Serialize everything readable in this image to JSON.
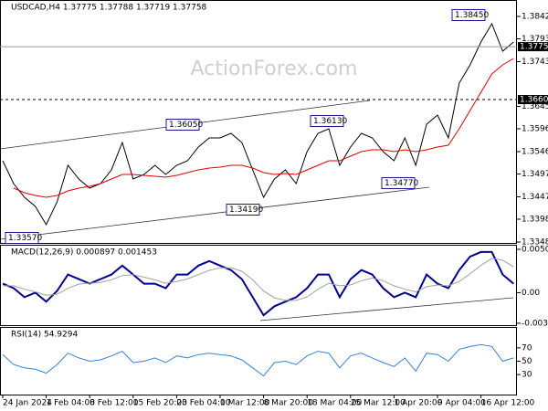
{
  "chart_data": [
    {
      "type": "line",
      "title": "USDCAD,H4 1.37775 1.37788 1.37719 1.37758",
      "watermark": "ActionForex.com",
      "categories": [
        "24 Jan 2024",
        null,
        null,
        null,
        "1 Feb 04:00",
        null,
        null,
        null,
        "8 Feb 12:00",
        null,
        null,
        null,
        "15 Feb 20:00",
        null,
        null,
        null,
        "23 Feb 04:00",
        null,
        null,
        null,
        "1 Mar 12:00",
        null,
        null,
        null,
        "8 Mar 20:00",
        null,
        null,
        null,
        "18 Mar 04:00",
        null,
        null,
        null,
        "25 Mar 12:00",
        null,
        null,
        null,
        "1 Apr 20:00",
        null,
        null,
        null,
        "9 Apr 04:00",
        null,
        null,
        null,
        "16 Apr 12:00",
        null,
        null,
        null
      ],
      "ylim": [
        1.3346,
        1.3876
      ],
      "yticks": [
        {
          "value": 1.3842,
          "label": "1.38420"
        },
        {
          "value": 1.3793,
          "label": "1.37930"
        },
        {
          "value": 1.3743,
          "label": "1.37430"
        },
        {
          "value": 1.3645,
          "label": "1.36450"
        },
        {
          "value": 1.3596,
          "label": "1.35960"
        },
        {
          "value": 1.3546,
          "label": "1.35460"
        },
        {
          "value": 1.3497,
          "label": "1.34970"
        },
        {
          "value": 1.3447,
          "label": "1.34470"
        },
        {
          "value": 1.3398,
          "label": "1.33980"
        },
        {
          "value": 1.3348,
          "label": "1.33480"
        }
      ],
      "series": [
        {
          "color": "#000000",
          "values": [
            1.3526,
            1.3476,
            1.3446,
            1.3426,
            1.3386,
            1.3436,
            1.3516,
            1.3486,
            1.3466,
            1.3476,
            1.3506,
            1.3566,
            1.3486,
            1.3496,
            1.3516,
            1.3496,
            1.3516,
            1.3526,
            1.3556,
            1.3576,
            1.3576,
            1.3586,
            1.3566,
            1.3506,
            1.3446,
            1.3486,
            1.3506,
            1.3476,
            1.3546,
            1.3586,
            1.3596,
            1.3516,
            1.3556,
            1.3586,
            1.3576,
            1.3546,
            1.3526,
            1.3576,
            1.3516,
            1.3606,
            1.3626,
            1.3576,
            1.3696,
            1.3736,
            1.3786,
            1.3826,
            1.3766,
            1.3786
          ]
        },
        {
          "color": "#e00000",
          "values": [
            null,
            1.3466,
            1.3456,
            1.345,
            1.3446,
            1.345,
            1.346,
            1.3466,
            1.347,
            1.3476,
            1.3486,
            1.3496,
            1.3496,
            1.3494,
            1.3492,
            1.349,
            1.3494,
            1.35,
            1.3506,
            1.351,
            1.3512,
            1.3516,
            1.3516,
            1.351,
            1.35,
            1.3496,
            1.3498,
            1.3496,
            1.3506,
            1.3516,
            1.3526,
            1.3526,
            1.3536,
            1.3546,
            1.355,
            1.355,
            1.3546,
            1.355,
            1.3546,
            1.355,
            1.3556,
            1.356,
            1.3596,
            1.3636,
            1.3676,
            1.3716,
            1.3736,
            1.375
          ]
        }
      ],
      "hlines": [
        {
          "value": 1.37758,
          "style": "solid"
        },
        {
          "value": 1.366,
          "label": "1.36600",
          "style": "dashed"
        }
      ],
      "annotations": [
        {
          "value": 1.3845,
          "label": "1.38450"
        },
        {
          "value": 1.3605,
          "label": "1.36050"
        },
        {
          "value": 1.3613,
          "label": "1.36130"
        },
        {
          "value": 1.3477,
          "label": "1.34770"
        },
        {
          "value": 1.3419,
          "label": "1.34190"
        },
        {
          "value": 1.3357,
          "label": "1.33570"
        }
      ]
    },
    {
      "type": "line",
      "title": "MACD(12,26,9) 0.000897 0.001453",
      "ylim": [
        -0.00379,
        0.00548
      ],
      "yticks": [
        0.005054,
        {
          "value": 0,
          "label": "0.00"
        },
        -0.003569
      ],
      "series": [
        {
          "color": "#00008b",
          "values": [
            0.00105,
            0.00053,
            -0.00053,
            0,
            -0.00105,
            0.00021,
            0.00211,
            0.00158,
            0.00105,
            0.00158,
            0.00211,
            0.00316,
            0.00211,
            0.00105,
            0.00105,
            0.00053,
            0.00211,
            0.00211,
            0.00316,
            0.00369,
            0.00316,
            0.00263,
            0.00158,
            -0.00053,
            -0.00263,
            -0.00158,
            -0.00105,
            -0.00053,
            0.00053,
            0.00211,
            0.00211,
            -0.00053,
            0.00158,
            0.00263,
            0.00211,
            0.00053,
            -0.00053,
            0,
            -0.00053,
            0.00211,
            0.00105,
            0.00053,
            0.00263,
            0.00421,
            0.00474,
            0.00474,
            0.00211,
            0.00105
          ]
        },
        {
          "color": "#a0a0a0",
          "values": [
            0.0008,
            0.0008,
            0.0004,
            0.0001,
            -0.0003,
            -0.0002,
            0.0005,
            0.001,
            0.0011,
            0.0012,
            0.0015,
            0.002,
            0.0021,
            0.0018,
            0.0015,
            0.0011,
            0.0013,
            0.0016,
            0.0021,
            0.0026,
            0.0029,
            0.0029,
            0.0025,
            0.0015,
            0.0002,
            -0.0006,
            -0.0009,
            -0.0009,
            -0.0005,
            0.0004,
            0.0011,
            0.0008,
            0.0009,
            0.0014,
            0.0017,
            0.0014,
            0.0008,
            0.0004,
            0.0001,
            0.0007,
            0.0009,
            0.0008,
            0.0013,
            0.0022,
            0.0032,
            0.004,
            0.0038,
            0.003
          ]
        }
      ]
    },
    {
      "type": "line",
      "title": "RSI(14) 54.9294",
      "ylim": [
        0,
        100
      ],
      "yticks": [
        70,
        50,
        30
      ],
      "series": [
        {
          "color": "#3a7fd5",
          "values": [
            60,
            45,
            40,
            38,
            32,
            45,
            62,
            55,
            50,
            52,
            58,
            65,
            48,
            50,
            55,
            48,
            58,
            55,
            60,
            62,
            60,
            58,
            52,
            40,
            28,
            48,
            50,
            45,
            58,
            65,
            62,
            40,
            58,
            62,
            55,
            48,
            42,
            55,
            35,
            62,
            60,
            50,
            68,
            72,
            75,
            72,
            50,
            55
          ]
        }
      ]
    }
  ]
}
